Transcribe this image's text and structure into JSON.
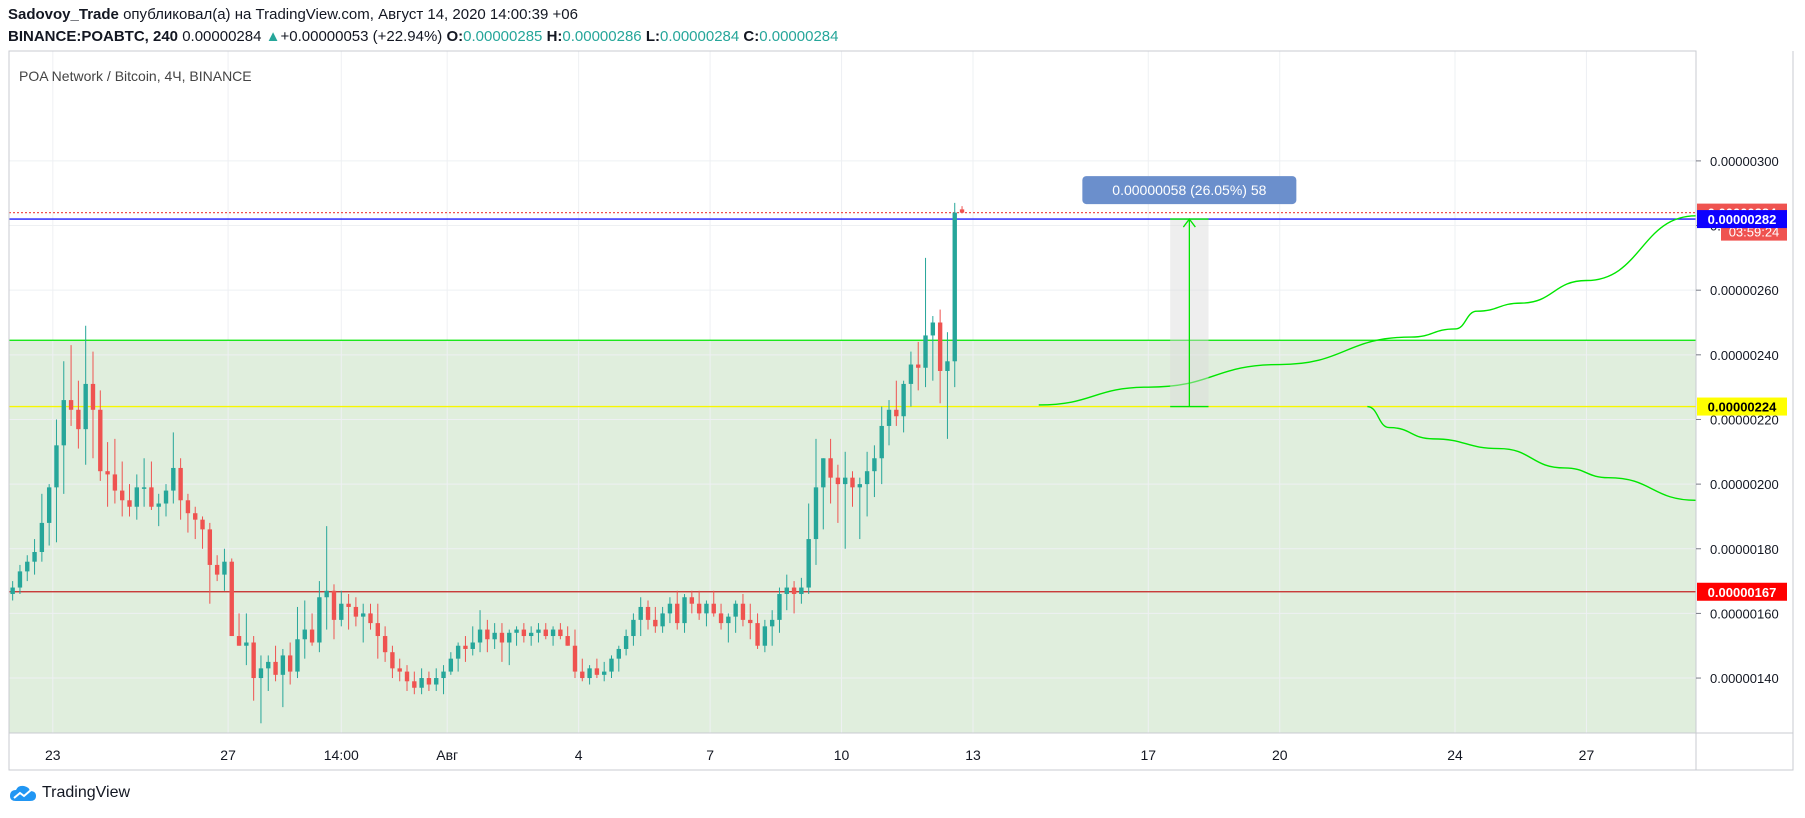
{
  "header": {
    "author": "Sadovoy_Trade",
    "published_text": "опубликовал(а) на TradingView.com, Август 14, 2020 14:00:39 +06",
    "symbol": "BINANCE:POABTC, 240",
    "last_price": "0.00000284",
    "change_arrow": "▲",
    "change_text": "+0.00000053 (+22.94%)",
    "o_label": "O:",
    "o_value": "0.00000285",
    "h_label": "H:",
    "h_value": "0.00000286",
    "l_label": "L:",
    "l_value": "0.00000284",
    "c_label": "C:",
    "c_value": "0.00000284"
  },
  "footer": {
    "brand": "TradingView"
  },
  "colors": {
    "up": "#26a69a",
    "down": "#ef5350",
    "zone_fill": "#e0eedd",
    "green_line": "#00e600",
    "yellow_line": "#f7f700",
    "blue_line": "#1a1aff",
    "red_line": "#c42222",
    "measure_label_bg": "#6b8fcc"
  },
  "chart_data": {
    "type": "candlestick",
    "title": "POA Network / Bitcoin, 4Ч, BINANCE",
    "ylim": [
      1.23e-06,
      3.34e-06
    ],
    "yticks": [
      "0.00000300",
      "0.00000280",
      "0.00000260",
      "0.00000240",
      "0.00000220",
      "0.00000200",
      "0.00000180",
      "0.00000160",
      "0.00000140"
    ],
    "ytick_values": [
      3e-06,
      2.8e-06,
      2.6e-06,
      2.4e-06,
      2.2e-06,
      2e-06,
      1.8e-06,
      1.6e-06,
      1.4e-06
    ],
    "xtick_labels": [
      "23",
      "27",
      "14:00",
      "Авг",
      "4",
      "7",
      "10",
      "13",
      "17",
      "20",
      "24",
      "27"
    ],
    "xtick_dates": [
      "2020-07-23",
      "2020-07-27",
      "2020-07-29 14:00",
      "2020-08-01",
      "2020-08-04",
      "2020-08-07",
      "2020-08-10",
      "2020-08-13",
      "2020-08-17",
      "2020-08-20",
      "2020-08-24",
      "2020-08-27"
    ],
    "x_range": [
      "2020-07-22 00:00",
      "2020-08-29 12:00"
    ],
    "candle_interval_hours": 4,
    "ohlc_levels_1e8": [
      [
        166,
        170,
        164,
        168
      ],
      [
        168,
        175,
        166,
        173
      ],
      [
        173,
        178,
        170,
        176
      ],
      [
        176,
        183,
        172,
        179
      ],
      [
        179,
        197,
        176,
        188
      ],
      [
        188,
        200,
        181,
        199
      ],
      [
        199,
        220,
        182,
        212
      ],
      [
        212,
        238,
        197,
        226
      ],
      [
        226,
        243,
        218,
        223
      ],
      [
        223,
        232,
        211,
        217
      ],
      [
        217,
        249,
        206,
        231
      ],
      [
        231,
        241,
        208,
        223
      ],
      [
        223,
        229,
        201,
        204
      ],
      [
        204,
        213,
        193,
        203
      ],
      [
        203,
        214,
        194,
        198
      ],
      [
        198,
        207,
        190,
        195
      ],
      [
        195,
        200,
        190,
        193
      ],
      [
        193,
        203,
        189,
        199
      ],
      [
        199,
        208,
        193,
        199
      ],
      [
        199,
        207,
        192,
        193
      ],
      [
        193,
        197,
        187,
        194
      ],
      [
        194,
        200,
        190,
        198
      ],
      [
        198,
        216,
        194,
        205
      ],
      [
        205,
        208,
        189,
        195
      ],
      [
        195,
        197,
        185,
        191
      ],
      [
        191,
        193,
        183,
        189
      ],
      [
        189,
        190,
        180,
        186
      ],
      [
        186,
        188,
        163,
        175
      ],
      [
        175,
        178,
        170,
        172
      ],
      [
        172,
        180,
        167,
        176
      ],
      [
        176,
        177,
        153,
        153
      ],
      [
        153,
        160,
        150,
        150
      ],
      [
        150,
        160,
        144,
        151
      ],
      [
        151,
        153,
        133,
        140
      ],
      [
        140,
        147,
        126,
        143
      ],
      [
        143,
        147,
        136,
        145
      ],
      [
        145,
        150,
        139,
        141
      ],
      [
        141,
        149,
        131,
        147
      ],
      [
        147,
        151,
        138,
        142
      ],
      [
        142,
        162,
        140,
        152
      ],
      [
        152,
        164,
        146,
        155
      ],
      [
        155,
        160,
        150,
        151
      ],
      [
        151,
        170,
        148,
        165
      ],
      [
        165,
        187,
        155,
        167
      ],
      [
        167,
        169,
        152,
        158
      ],
      [
        158,
        167,
        156,
        163
      ],
      [
        163,
        166,
        155,
        162
      ],
      [
        162,
        165,
        156,
        159
      ],
      [
        159,
        163,
        151,
        160
      ],
      [
        160,
        163,
        155,
        157
      ],
      [
        157,
        163,
        146,
        153
      ],
      [
        153,
        156,
        145,
        148
      ],
      [
        148,
        150,
        140,
        143
      ],
      [
        143,
        146,
        139,
        142
      ],
      [
        142,
        144,
        136,
        139
      ],
      [
        139,
        142,
        135,
        137
      ],
      [
        137,
        143,
        135,
        140
      ],
      [
        140,
        142,
        136,
        138
      ],
      [
        138,
        143,
        136,
        140
      ],
      [
        140,
        144,
        135,
        142
      ],
      [
        142,
        148,
        141,
        146
      ],
      [
        146,
        151,
        142,
        150
      ],
      [
        150,
        153,
        145,
        149
      ],
      [
        149,
        156,
        147,
        151
      ],
      [
        151,
        161,
        148,
        155
      ],
      [
        155,
        158,
        148,
        152
      ],
      [
        152,
        157,
        149,
        154
      ],
      [
        154,
        157,
        145,
        151
      ],
      [
        151,
        155,
        144,
        154
      ],
      [
        154,
        156,
        150,
        155
      ],
      [
        155,
        157,
        151,
        153
      ],
      [
        153,
        156,
        150,
        154
      ],
      [
        154,
        157,
        151,
        155
      ],
      [
        155,
        157,
        152,
        153
      ],
      [
        153,
        156,
        150,
        155
      ],
      [
        155,
        157,
        152,
        153
      ],
      [
        153,
        156,
        150,
        150
      ],
      [
        150,
        155,
        140,
        142
      ],
      [
        142,
        146,
        139,
        140
      ],
      [
        140,
        144,
        138,
        143
      ],
      [
        143,
        146,
        140,
        141
      ],
      [
        141,
        145,
        139,
        142
      ],
      [
        142,
        147,
        140,
        146
      ],
      [
        146,
        150,
        142,
        149
      ],
      [
        149,
        155,
        147,
        153
      ],
      [
        153,
        160,
        150,
        158
      ],
      [
        158,
        165,
        153,
        162
      ],
      [
        162,
        164,
        155,
        158
      ],
      [
        158,
        162,
        154,
        156
      ],
      [
        156,
        162,
        154,
        160
      ],
      [
        160,
        165,
        157,
        163
      ],
      [
        163,
        167,
        155,
        157
      ],
      [
        157,
        166,
        154,
        165
      ],
      [
        165,
        167,
        160,
        163
      ],
      [
        163,
        167,
        158,
        160
      ],
      [
        160,
        164,
        156,
        163
      ],
      [
        163,
        167,
        159,
        160
      ],
      [
        160,
        163,
        155,
        157
      ],
      [
        157,
        160,
        151,
        159
      ],
      [
        159,
        164,
        154,
        163
      ],
      [
        163,
        166,
        156,
        158
      ],
      [
        158,
        163,
        152,
        157
      ],
      [
        157,
        160,
        149,
        150
      ],
      [
        150,
        158,
        148,
        156
      ],
      [
        156,
        161,
        150,
        158
      ],
      [
        158,
        168,
        154,
        166
      ],
      [
        166,
        172,
        161,
        168
      ],
      [
        168,
        170,
        160,
        166
      ],
      [
        166,
        171,
        163,
        168
      ],
      [
        168,
        194,
        166,
        183
      ],
      [
        183,
        214,
        175,
        199
      ],
      [
        199,
        208,
        186,
        208
      ],
      [
        208,
        214,
        194,
        202
      ],
      [
        202,
        206,
        188,
        200
      ],
      [
        200,
        210,
        180,
        202
      ],
      [
        202,
        204,
        193,
        199
      ],
      [
        199,
        202,
        183,
        200
      ],
      [
        200,
        210,
        190,
        204
      ],
      [
        204,
        212,
        196,
        208
      ],
      [
        208,
        224,
        200,
        218
      ],
      [
        218,
        226,
        212,
        223
      ],
      [
        223,
        232,
        218,
        221
      ],
      [
        221,
        232,
        216,
        231
      ],
      [
        231,
        241,
        224,
        237
      ],
      [
        237,
        244,
        229,
        236
      ],
      [
        236,
        270,
        230,
        246
      ],
      [
        246,
        252,
        232,
        250
      ],
      [
        250,
        254,
        225,
        235
      ],
      [
        235,
        247,
        214,
        238
      ],
      [
        238,
        287,
        230,
        284
      ],
      [
        285,
        286,
        284,
        284
      ]
    ],
    "horizontal_levels": [
      {
        "label": "0.00000284",
        "value": 2.84e-06,
        "style": "dotted",
        "color": "#ef5350",
        "countdown": "03:59:24"
      },
      {
        "label": "0.00000282",
        "value": 2.82e-06,
        "color": "#1a1aff"
      },
      {
        "value": 2.445e-06,
        "color": "#00e600"
      },
      {
        "label": "0.00000224",
        "value": 2.24e-06,
        "color": "#f7f700"
      },
      {
        "label": "0.00000167",
        "value": 1.667e-06,
        "color": "#c42222"
      }
    ],
    "zone": {
      "from": 1.23e-06,
      "to": 2.445e-06
    },
    "measure": {
      "label": "0.00000058 (26.05%) 58",
      "from": 2.24e-06,
      "to": 2.82e-06
    },
    "projection_curves": [
      {
        "x": [
          "2020-08-14 12:00",
          "2020-08-17 00:00",
          "2020-08-20 00:00",
          "2020-08-23 00:00",
          "2020-08-24 00:00",
          "2020-08-24 12:00",
          "2020-08-25 12:00",
          "2020-08-27 00:00",
          "2020-08-29 12:00"
        ],
        "y": [
          2.245e-06,
          2.3e-06,
          2.37e-06,
          2.455e-06,
          2.48e-06,
          2.535e-06,
          2.56e-06,
          2.63e-06,
          2.83e-06
        ]
      },
      {
        "x": [
          "2020-08-22 00:00",
          "2020-08-22 12:00",
          "2020-08-23 12:00",
          "2020-08-25 00:00",
          "2020-08-26 12:00",
          "2020-08-27 12:00",
          "2020-08-29 12:00"
        ],
        "y": [
          2.24e-06,
          2.175e-06,
          2.14e-06,
          2.11e-06,
          2.05e-06,
          2.02e-06,
          1.95e-06
        ]
      }
    ]
  }
}
